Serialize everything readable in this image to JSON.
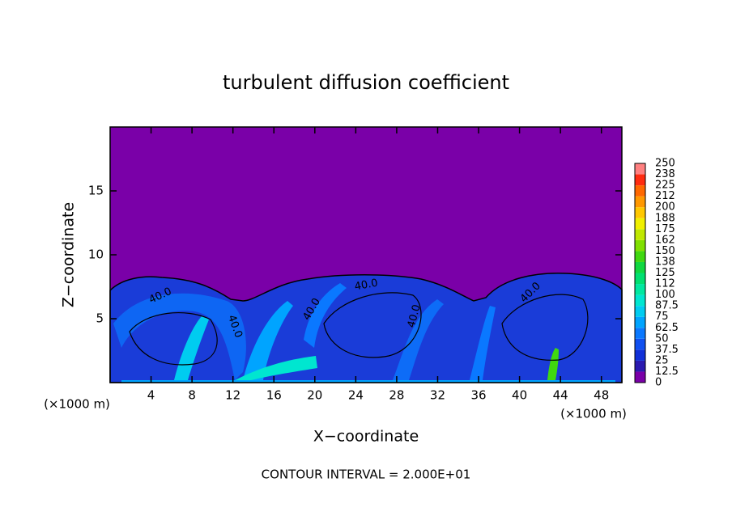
{
  "chart_data": {
    "type": "heatmap",
    "title": "turbulent diffusion coefficient",
    "xlabel": "X−coordinate",
    "ylabel": "Z−coordinate",
    "x_unit_label": "(×1000 m)",
    "footnote": "CONTOUR INTERVAL = 2.000E+01",
    "contour_labels": [
      "40.0",
      "40.0",
      "40.0",
      "40.0",
      "40.0",
      "40.0"
    ],
    "xlim": [
      0,
      50
    ],
    "ylim": [
      0,
      20
    ],
    "xticks": [
      4,
      8,
      12,
      16,
      20,
      24,
      28,
      32,
      36,
      40,
      44,
      48
    ],
    "yticks": [
      5,
      10,
      15
    ],
    "colorbar": {
      "levels": [
        0,
        12.5,
        25,
        37.5,
        50,
        62.5,
        75,
        87.5,
        100,
        112,
        125,
        138,
        150,
        162,
        175,
        188,
        200,
        212,
        225,
        238,
        250
      ],
      "colors": [
        "#7a00a8",
        "#2a1ab0",
        "#1030d8",
        "#1050f0",
        "#0a78ff",
        "#00a4ff",
        "#00ccf0",
        "#00e6d0",
        "#00e8a0",
        "#00e070",
        "#10d840",
        "#40d810",
        "#80e000",
        "#c0e800",
        "#f0f000",
        "#ffc800",
        "#ff9800",
        "#ff6800",
        "#ff2c10",
        "#ff8080"
      ]
    }
  }
}
